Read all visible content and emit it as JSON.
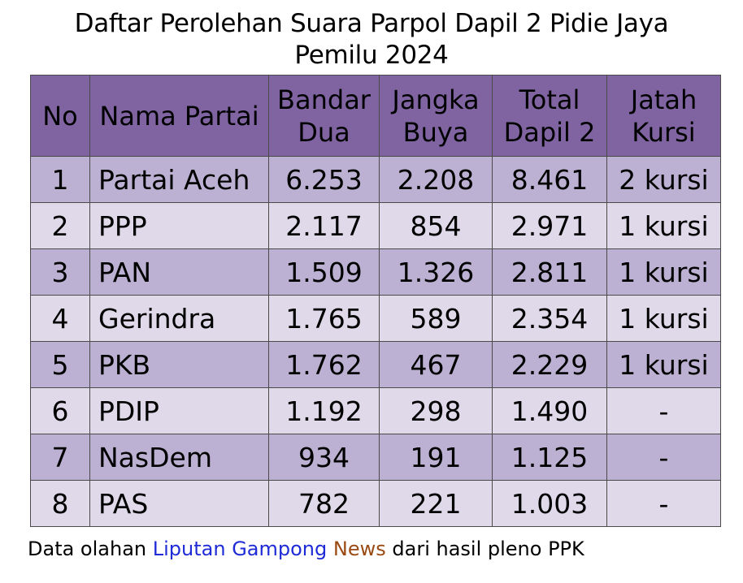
{
  "title": {
    "line1": "Daftar Perolehan Suara Parpol Dapil 2 Pidie Jaya",
    "line2": "Pemilu 2024"
  },
  "table": {
    "headers": [
      "No",
      "Nama Partai",
      "Bandar Dua",
      "Jangka Buya",
      "Total Dapil 2",
      "Jatah Kursi"
    ],
    "rows": [
      [
        "1",
        "Partai Aceh",
        "6.253",
        "2.208",
        "8.461",
        "2 kursi"
      ],
      [
        "2",
        "PPP",
        "2.117",
        "854",
        "2.971",
        "1 kursi"
      ],
      [
        "3",
        "PAN",
        "1.509",
        "1.326",
        "2.811",
        "1 kursi"
      ],
      [
        "4",
        "Gerindra",
        "1.765",
        "589",
        "2.354",
        "1 kursi"
      ],
      [
        "5",
        "PKB",
        "1.762",
        "467",
        "2.229",
        "1 kursi"
      ],
      [
        "6",
        "PDIP",
        "1.192",
        "298",
        "1.490",
        "-"
      ],
      [
        "7",
        "NasDem",
        "934",
        "191",
        "1.125",
        "-"
      ],
      [
        "8",
        "PAS",
        "782",
        "221",
        "1.003",
        "-"
      ]
    ]
  },
  "footnote": {
    "prefix": "Data olahan ",
    "brand_part1": "Liputan Gampong",
    "brand_part2": "News",
    "suffix": " dari hasil pleno PPK"
  },
  "colors": {
    "header_bg": "#8064a2",
    "row_dark": "#bcb1d2",
    "row_light": "#dfd9e9",
    "brand_blue": "#1f2bd6",
    "brand_brown": "#9a4a12"
  }
}
